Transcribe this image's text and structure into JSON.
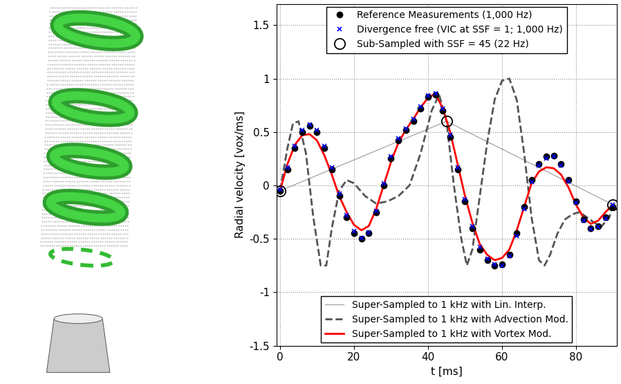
{
  "chart_data": {
    "type": "line",
    "x_label": "t [ms]",
    "y_label": "Radial velocity [vox/ms]",
    "xlim": [
      -1,
      91
    ],
    "xticks": [
      0,
      20,
      40,
      60,
      80
    ],
    "ylim": [
      -1.5,
      1.7
    ],
    "yticks": [
      -1.5,
      -1,
      -0.5,
      0,
      0.5,
      1,
      1.5
    ],
    "grid": true,
    "legend": "upper center",
    "series": [
      {
        "name": "Reference Measurements (1,000 Hz)",
        "type": "scatter",
        "marker": "circle",
        "color": "#000000",
        "x": [
          0,
          2,
          4,
          6,
          8,
          10,
          12,
          14,
          16,
          18,
          20,
          22,
          24,
          26,
          28,
          30,
          32,
          34,
          36,
          38,
          40,
          42,
          44,
          46,
          48,
          50,
          52,
          54,
          56,
          58,
          60,
          62,
          64,
          66,
          68,
          70,
          72,
          74,
          76,
          78,
          80,
          82,
          84,
          86,
          88,
          90
        ],
        "values": [
          -0.05,
          0.15,
          0.35,
          0.5,
          0.56,
          0.5,
          0.35,
          0.15,
          -0.1,
          -0.3,
          -0.45,
          -0.5,
          -0.45,
          -0.25,
          0.0,
          0.25,
          0.42,
          0.52,
          0.6,
          0.72,
          0.83,
          0.85,
          0.7,
          0.45,
          0.15,
          -0.15,
          -0.4,
          -0.6,
          -0.7,
          -0.75,
          -0.74,
          -0.65,
          -0.45,
          -0.2,
          0.05,
          0.2,
          0.27,
          0.28,
          0.2,
          0.05,
          -0.15,
          -0.32,
          -0.4,
          -0.38,
          -0.3,
          -0.2
        ]
      },
      {
        "name": "Divergence free (VIC at SSF = 1; 1,000 Hz)",
        "type": "scatter",
        "marker": "x",
        "color": "#0000ff",
        "x": [
          0,
          2,
          4,
          6,
          8,
          10,
          12,
          14,
          16,
          18,
          20,
          22,
          24,
          26,
          28,
          30,
          32,
          34,
          36,
          38,
          40,
          42,
          44,
          46,
          48,
          50,
          52,
          54,
          56,
          58,
          60,
          62,
          64,
          66,
          68,
          70,
          72,
          74,
          76,
          78,
          80,
          82,
          84,
          86,
          88,
          90
        ],
        "values": [
          -0.04,
          0.17,
          0.37,
          0.52,
          0.57,
          0.52,
          0.37,
          0.17,
          -0.08,
          -0.28,
          -0.43,
          -0.49,
          -0.44,
          -0.24,
          0.02,
          0.27,
          0.44,
          0.53,
          0.62,
          0.74,
          0.84,
          0.86,
          0.72,
          0.47,
          0.17,
          -0.13,
          -0.38,
          -0.58,
          -0.69,
          -0.74,
          -0.75,
          -0.66,
          -0.47,
          -0.22,
          0.03,
          0.19,
          0.25,
          0.27,
          0.19,
          0.04,
          -0.16,
          -0.33,
          -0.41,
          -0.39,
          -0.31,
          -0.18
        ]
      },
      {
        "name": "Sub-Sampled with SSF = 45 (22 Hz)",
        "type": "scatter",
        "marker": "ring",
        "color": "#000000",
        "x": [
          0,
          45,
          90
        ],
        "values": [
          -0.05,
          0.6,
          -0.18
        ]
      },
      {
        "name": "Super-Sampled to 1 kHz with Lin. Interp.",
        "type": "line",
        "line_style": "solid",
        "color": "#999999",
        "x": [
          0,
          45,
          90
        ],
        "values": [
          -0.05,
          0.6,
          -0.18
        ]
      },
      {
        "name": "Super-Sampled to 1 kHz with Advection Mod.",
        "type": "line",
        "line_style": "dashed",
        "color": "#555555",
        "x": [
          0,
          2,
          3.5,
          5,
          7,
          9,
          11,
          12.5,
          14,
          16,
          18,
          20,
          23,
          26,
          29,
          32,
          35,
          38,
          41,
          43,
          45,
          47,
          49,
          50.5,
          52,
          54,
          56,
          58,
          60,
          62,
          64,
          66,
          68,
          70,
          71.5,
          73,
          75,
          77,
          79,
          81,
          83,
          85,
          87,
          89,
          90
        ],
        "values": [
          -0.05,
          0.35,
          0.58,
          0.6,
          0.3,
          -0.3,
          -0.75,
          -0.75,
          -0.4,
          -0.05,
          0.05,
          0.02,
          -0.1,
          -0.17,
          -0.15,
          -0.1,
          0.0,
          0.3,
          0.7,
          0.85,
          0.6,
          0.0,
          -0.5,
          -0.75,
          -0.6,
          -0.1,
          0.4,
          0.8,
          0.98,
          1.0,
          0.8,
          0.3,
          -0.3,
          -0.7,
          -0.75,
          -0.65,
          -0.45,
          -0.32,
          -0.27,
          -0.25,
          -0.3,
          -0.35,
          -0.38,
          -0.3,
          -0.18
        ]
      },
      {
        "name": "Super-Sampled to 1 kHz with Vortex Mod.",
        "type": "line",
        "line_style": "solid",
        "color": "#ff0000",
        "x": [
          0,
          2,
          4,
          6,
          8,
          10,
          12,
          14,
          16,
          18,
          20,
          22,
          24,
          26,
          28,
          30,
          32,
          34,
          36,
          38,
          40,
          42,
          44,
          46,
          48,
          50,
          52,
          54,
          56,
          58,
          60,
          62,
          64,
          66,
          68,
          70,
          72,
          74,
          76,
          78,
          80,
          82,
          84,
          86,
          88,
          90
        ],
        "values": [
          -0.05,
          0.2,
          0.38,
          0.47,
          0.48,
          0.42,
          0.28,
          0.1,
          -0.1,
          -0.25,
          -0.37,
          -0.42,
          -0.38,
          -0.22,
          0.0,
          0.22,
          0.4,
          0.52,
          0.62,
          0.73,
          0.82,
          0.86,
          0.72,
          0.5,
          0.2,
          -0.1,
          -0.35,
          -0.55,
          -0.65,
          -0.7,
          -0.68,
          -0.6,
          -0.42,
          -0.2,
          0.02,
          0.13,
          0.17,
          0.16,
          0.1,
          -0.02,
          -0.18,
          -0.3,
          -0.36,
          -0.33,
          -0.25,
          -0.18
        ]
      }
    ]
  }
}
